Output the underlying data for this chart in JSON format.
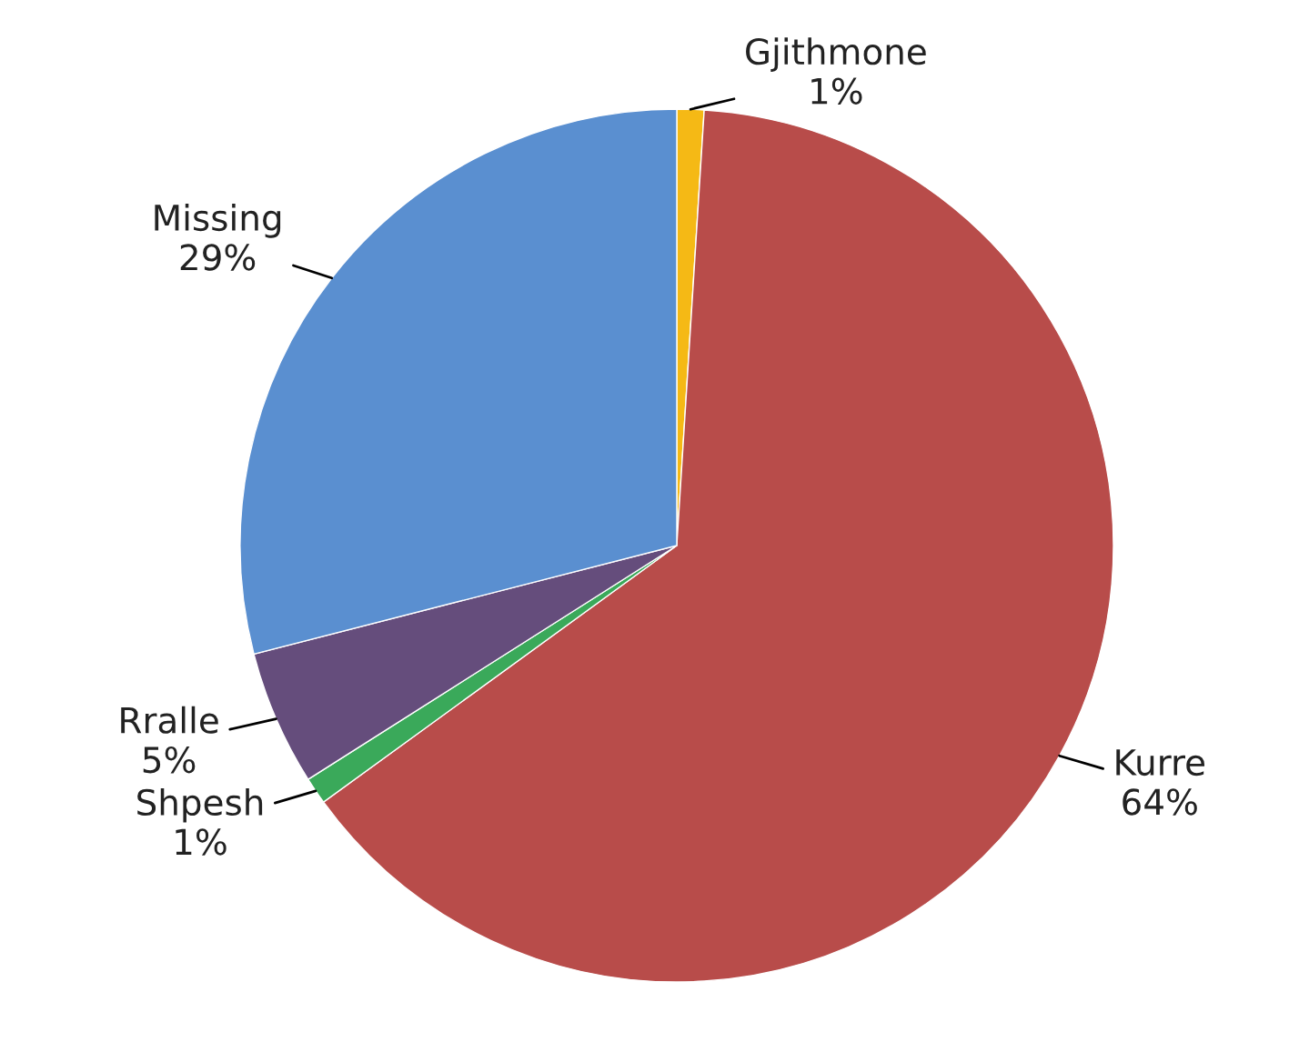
{
  "chart_data": {
    "type": "pie",
    "categories": [
      "Gjithmone",
      "Kurre",
      "Shpesh",
      "Rralle",
      "Missing"
    ],
    "values": [
      1,
      64,
      1,
      5,
      29
    ],
    "colors": [
      "#f5b915",
      "#b84c4a",
      "#3aa95a",
      "#654d7c",
      "#5a8fd0"
    ],
    "value_labels": [
      "1%",
      "64%",
      "1%",
      "5%",
      "29%"
    ]
  }
}
